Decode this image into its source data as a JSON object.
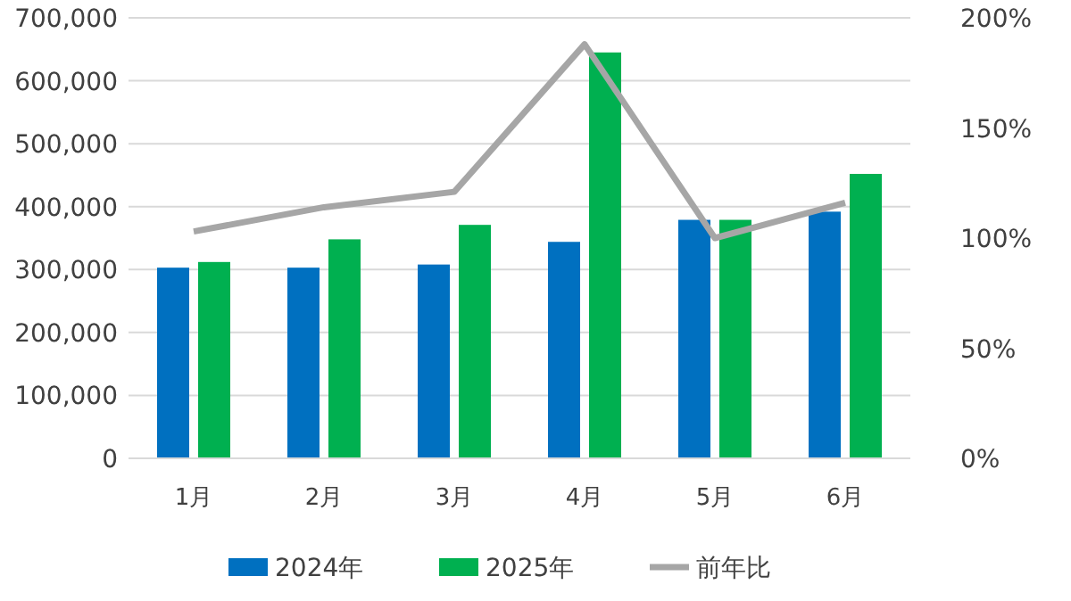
{
  "chart_data": {
    "type": "bar",
    "categories": [
      "1月",
      "2月",
      "3月",
      "4月",
      "5月",
      "6月"
    ],
    "series": [
      {
        "name": "2024年",
        "color": "#0070c0",
        "values": [
          303000,
          303000,
          308000,
          344000,
          379000,
          392000
        ]
      },
      {
        "name": "2025年",
        "color": "#00b050",
        "values": [
          312000,
          348000,
          371000,
          645000,
          379000,
          452000
        ]
      },
      {
        "name": "前年比",
        "type": "line",
        "axis": "y2",
        "color": "#a6a6a6",
        "values": [
          103,
          114,
          121,
          188,
          100,
          116
        ]
      }
    ],
    "ylim": [
      0,
      700000
    ],
    "yticks": [
      {
        "value": 0,
        "label": "0"
      },
      {
        "value": 100000,
        "label": "100,000"
      },
      {
        "value": 200000,
        "label": "200,000"
      },
      {
        "value": 300000,
        "label": "300,000"
      },
      {
        "value": 400000,
        "label": "400,000"
      },
      {
        "value": 500000,
        "label": "500,000"
      },
      {
        "value": 600000,
        "label": "600,000"
      },
      {
        "value": 700000,
        "label": "700,000"
      }
    ],
    "y2lim": [
      0,
      200
    ],
    "y2ticks": [
      {
        "value": 0,
        "label": "0%"
      },
      {
        "value": 50,
        "label": "50%"
      },
      {
        "value": 100,
        "label": "100%"
      },
      {
        "value": 150,
        "label": "150%"
      },
      {
        "value": 200,
        "label": "200%"
      }
    ],
    "grid": "y",
    "legend": "bottom",
    "marker": "none",
    "line_style": "solid"
  }
}
